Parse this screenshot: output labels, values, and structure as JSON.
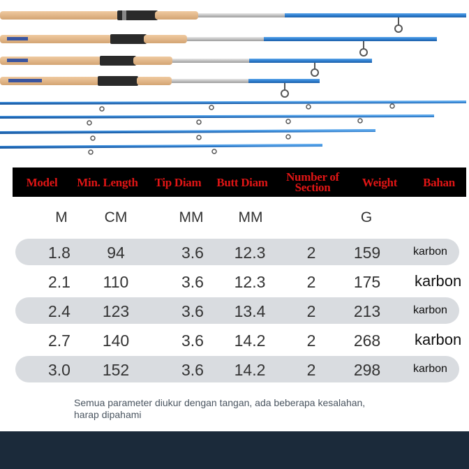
{
  "headers": [
    "Model",
    "Min. Length",
    "Tip Diam",
    "Butt Diam",
    "Number of Section",
    "Weight",
    "Bahan"
  ],
  "units": [
    "M",
    "CM",
    "MM",
    "MM",
    "G"
  ],
  "rows": [
    {
      "model": "1.8",
      "length": "94",
      "tip": "3.6",
      "butt": "12.3",
      "sections": "2",
      "weight": "159",
      "material": "karbon"
    },
    {
      "model": "2.1",
      "length": "110",
      "tip": "3.6",
      "butt": "12.3",
      "sections": "2",
      "weight": "175",
      "material": "karbon"
    },
    {
      "model": "2.4",
      "length": "123",
      "tip": "3.6",
      "butt": "13.4",
      "sections": "2",
      "weight": "213",
      "material": "karbon"
    },
    {
      "model": "2.7",
      "length": "140",
      "tip": "3.6",
      "butt": "14.2",
      "sections": "2",
      "weight": "268",
      "material": "karbon"
    },
    {
      "model": "3.0",
      "length": "152",
      "tip": "3.6",
      "butt": "14.2",
      "sections": "2",
      "weight": "298",
      "material": "karbon"
    }
  ],
  "note": {
    "line1": "Semua parameter diukur dengan tangan, ada beberapa kesalahan,",
    "line2": "harap dipahami"
  },
  "colors": {
    "header_bg": "#000000",
    "header_text": "#e01515",
    "row_shade": "#d9dce0",
    "rod_blue": "#2f7fd0",
    "cork": "#e3b88a",
    "footer": "#1b2a3a"
  }
}
